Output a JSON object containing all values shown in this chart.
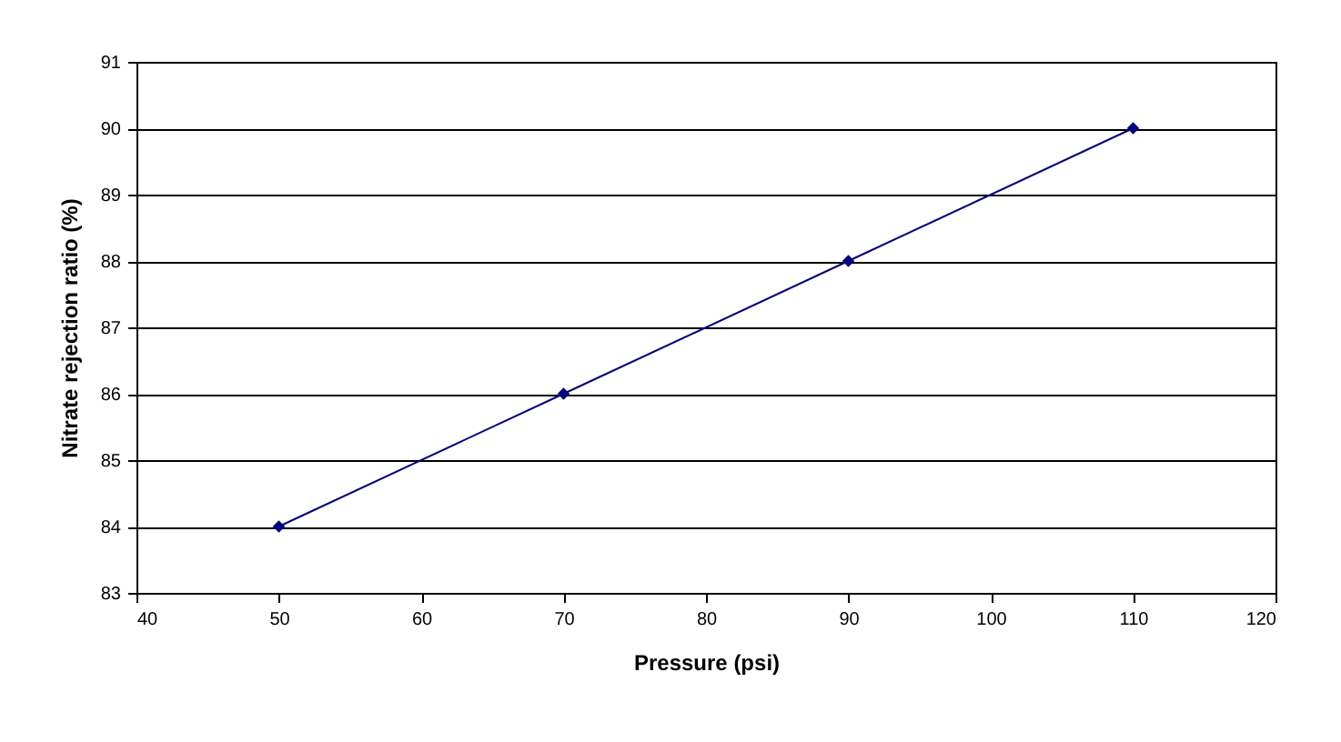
{
  "chart_data": {
    "type": "line",
    "xlabel": "Pressure (psi)",
    "ylabel": "Nitrate rejection ratio (%)",
    "x": [
      50,
      70,
      90,
      110
    ],
    "series": [
      {
        "color": "#000080",
        "values": [
          84,
          86,
          88,
          90
        ]
      }
    ],
    "xlim": [
      40,
      120
    ],
    "xticks": [
      40,
      50,
      60,
      70,
      80,
      90,
      100,
      110,
      120
    ],
    "ylim": [
      83,
      91
    ],
    "yticks": [
      83,
      84,
      85,
      86,
      87,
      88,
      89,
      90,
      91
    ],
    "grid": "y",
    "legend": false,
    "marker": "diamond",
    "line_style": "solid"
  }
}
